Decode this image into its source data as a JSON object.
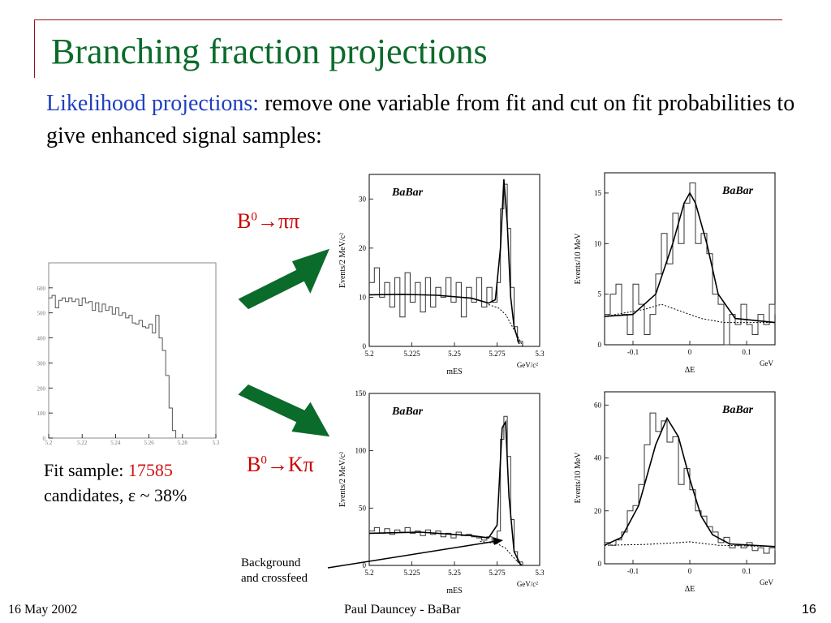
{
  "title": "Branching fraction projections",
  "subtitle": {
    "highlight": "Likelihood projections:",
    "text": " remove one variable from fit and cut on fit probabilities to give enhanced signal samples:"
  },
  "labels": {
    "decay_pipi_base": "B",
    "decay_pipi_sup": "0",
    "decay_pipi_rest": "→ππ",
    "decay_kpi_base": "B",
    "decay_kpi_sup": "0",
    "decay_kpi_rest": "→Kπ",
    "fit_prefix": "Fit sample: ",
    "fit_count": "17585",
    "fit_suffix": "candidates, ε ~ 38%",
    "bg_line1": "Background",
    "bg_line2": "and crossfeed"
  },
  "footer": {
    "date": "16 May 2002",
    "author": "Paul Dauncey - BaBar",
    "page": "16"
  },
  "colors": {
    "title": "#0a6b2a",
    "highlight": "#1f3fbf",
    "decay": "#cc0000",
    "count": "#d01010",
    "arrow": "#0a6b2a",
    "accent_line": "#8b1a1a"
  },
  "chart_data": [
    {
      "type": "line",
      "title": "",
      "xlabel": "mES",
      "ylabel": "",
      "xlim": [
        5.2,
        5.3
      ],
      "ylim": [
        0,
        700
      ],
      "x_ticks": [
        "5.2",
        "5.22",
        "5.24",
        "5.26",
        "5.28",
        "5.3"
      ],
      "y_ticks": [
        "0",
        "100",
        "200",
        "300",
        "400",
        "500",
        "600"
      ],
      "series": [
        {
          "values": [
            [
              5.2,
              560
            ],
            [
              5.202,
              570
            ],
            [
              5.204,
              520
            ],
            [
              5.206,
              550
            ],
            [
              5.208,
              560
            ],
            [
              5.21,
              545
            ],
            [
              5.212,
              560
            ],
            [
              5.214,
              545
            ],
            [
              5.216,
              555
            ],
            [
              5.218,
              530
            ],
            [
              5.22,
              560
            ],
            [
              5.222,
              540
            ],
            [
              5.224,
              545
            ],
            [
              5.226,
              510
            ],
            [
              5.228,
              540
            ],
            [
              5.23,
              505
            ],
            [
              5.232,
              535
            ],
            [
              5.234,
              510
            ],
            [
              5.236,
              525
            ],
            [
              5.238,
              495
            ],
            [
              5.24,
              520
            ],
            [
              5.242,
              490
            ],
            [
              5.244,
              500
            ],
            [
              5.246,
              480
            ],
            [
              5.248,
              490
            ],
            [
              5.25,
              460
            ],
            [
              5.252,
              455
            ],
            [
              5.254,
              470
            ],
            [
              5.256,
              445
            ],
            [
              5.258,
              440
            ],
            [
              5.26,
              455
            ],
            [
              5.262,
              420
            ],
            [
              5.264,
              490
            ],
            [
              5.266,
              400
            ],
            [
              5.268,
              350
            ],
            [
              5.27,
              250
            ],
            [
              5.272,
              120
            ],
            [
              5.274,
              30
            ],
            [
              5.276,
              0
            ]
          ]
        }
      ]
    },
    {
      "type": "line",
      "title": "BaBar",
      "xlabel": "mES",
      "xunit": "GeV/c²",
      "ylabel": "Events/2 MeV/c²",
      "xlim": [
        5.2,
        5.3
      ],
      "ylim": [
        0,
        35
      ],
      "x_ticks": [
        "5.2",
        "5.225",
        "5.25",
        "5.275",
        "5.3"
      ],
      "y_ticks": [
        "0",
        "10",
        "20",
        "30"
      ],
      "series": [
        {
          "values": [
            [
              5.2,
              13
            ],
            [
              5.203,
              16
            ],
            [
              5.206,
              10
            ],
            [
              5.209,
              13
            ],
            [
              5.212,
              8
            ],
            [
              5.215,
              14
            ],
            [
              5.218,
              6
            ],
            [
              5.221,
              15
            ],
            [
              5.224,
              9
            ],
            [
              5.227,
              13
            ],
            [
              5.23,
              7
            ],
            [
              5.233,
              14
            ],
            [
              5.236,
              8
            ],
            [
              5.239,
              12
            ],
            [
              5.242,
              10
            ],
            [
              5.245,
              14
            ],
            [
              5.248,
              9
            ],
            [
              5.251,
              13
            ],
            [
              5.254,
              6
            ],
            [
              5.257,
              12
            ],
            [
              5.26,
              9
            ],
            [
              5.263,
              14
            ],
            [
              5.266,
              8
            ],
            [
              5.269,
              12
            ],
            [
              5.272,
              9
            ],
            [
              5.275,
              13
            ],
            [
              5.277,
              28
            ],
            [
              5.279,
              33
            ],
            [
              5.281,
              24
            ],
            [
              5.283,
              12
            ],
            [
              5.285,
              4
            ],
            [
              5.287,
              1
            ],
            [
              5.29,
              0
            ]
          ]
        },
        {
          "values": [
            [
              5.2,
              10.5
            ],
            [
              5.22,
              10.6
            ],
            [
              5.24,
              10.4
            ],
            [
              5.26,
              9.8
            ],
            [
              5.27,
              8.8
            ],
            [
              5.274,
              9.5
            ],
            [
              5.277,
              20
            ],
            [
              5.279,
              34
            ],
            [
              5.281,
              25
            ],
            [
              5.283,
              10
            ],
            [
              5.285,
              4
            ],
            [
              5.288,
              0.5
            ]
          ]
        },
        {
          "values": [
            [
              5.27,
              8.5
            ],
            [
              5.276,
              7.8
            ],
            [
              5.28,
              6.5
            ],
            [
              5.284,
              4
            ],
            [
              5.288,
              1.5
            ],
            [
              5.29,
              0
            ]
          ]
        }
      ]
    },
    {
      "type": "line",
      "title": "BaBar",
      "xlabel": "ΔE",
      "xunit": "GeV",
      "ylabel": "Events/10 MeV",
      "xlim": [
        -0.15,
        0.15
      ],
      "ylim": [
        0,
        17
      ],
      "x_ticks": [
        "-0.1",
        "0",
        "0.1"
      ],
      "y_ticks": [
        "0",
        "5",
        "10",
        "15"
      ],
      "series": [
        {
          "values": [
            [
              -0.15,
              3
            ],
            [
              -0.14,
              5
            ],
            [
              -0.13,
              6
            ],
            [
              -0.12,
              3
            ],
            [
              -0.11,
              1
            ],
            [
              -0.1,
              6
            ],
            [
              -0.09,
              4
            ],
            [
              -0.08,
              1
            ],
            [
              -0.07,
              3
            ],
            [
              -0.06,
              7
            ],
            [
              -0.05,
              11
            ],
            [
              -0.04,
              8
            ],
            [
              -0.03,
              13
            ],
            [
              -0.02,
              10
            ],
            [
              -0.01,
              14
            ],
            [
              0,
              16
            ],
            [
              0.01,
              10
            ],
            [
              0.02,
              11
            ],
            [
              0.03,
              9
            ],
            [
              0.04,
              5
            ],
            [
              0.05,
              4
            ],
            [
              0.06,
              0
            ],
            [
              0.07,
              3
            ],
            [
              0.08,
              2
            ],
            [
              0.09,
              4
            ],
            [
              0.1,
              2
            ],
            [
              0.11,
              1
            ],
            [
              0.12,
              3
            ],
            [
              0.13,
              2
            ],
            [
              0.14,
              4
            ],
            [
              0.15,
              3
            ]
          ]
        },
        {
          "values": [
            [
              -0.15,
              2.8
            ],
            [
              -0.1,
              3
            ],
            [
              -0.06,
              5
            ],
            [
              -0.03,
              10
            ],
            [
              -0.01,
              14
            ],
            [
              0,
              15
            ],
            [
              0.01,
              14
            ],
            [
              0.03,
              10
            ],
            [
              0.05,
              5
            ],
            [
              0.08,
              2.6
            ],
            [
              0.15,
              2.2
            ]
          ]
        },
        {
          "values": [
            [
              -0.15,
              2.8
            ],
            [
              -0.08,
              3.5
            ],
            [
              -0.05,
              4
            ],
            [
              -0.02,
              3.4
            ],
            [
              0.02,
              2.6
            ],
            [
              0.06,
              2.2
            ],
            [
              0.15,
              2.2
            ]
          ]
        }
      ]
    },
    {
      "type": "line",
      "title": "BaBar",
      "xlabel": "mES",
      "xunit": "GeV/c²",
      "ylabel": "Events/2 MeV/c²",
      "xlim": [
        5.2,
        5.3
      ],
      "ylim": [
        0,
        150
      ],
      "x_ticks": [
        "5.2",
        "5.225",
        "5.25",
        "5.275",
        "5.3"
      ],
      "y_ticks": [
        "0",
        "50",
        "100",
        "150"
      ],
      "series": [
        {
          "values": [
            [
              5.2,
              30
            ],
            [
              5.203,
              33
            ],
            [
              5.206,
              28
            ],
            [
              5.209,
              32
            ],
            [
              5.212,
              27
            ],
            [
              5.215,
              31
            ],
            [
              5.218,
              29
            ],
            [
              5.221,
              33
            ],
            [
              5.224,
              28
            ],
            [
              5.227,
              30
            ],
            [
              5.23,
              26
            ],
            [
              5.233,
              31
            ],
            [
              5.236,
              27
            ],
            [
              5.239,
              30
            ],
            [
              5.242,
              25
            ],
            [
              5.245,
              28
            ],
            [
              5.248,
              24
            ],
            [
              5.251,
              29
            ],
            [
              5.254,
              26
            ],
            [
              5.257,
              27
            ],
            [
              5.26,
              25
            ],
            [
              5.263,
              24
            ],
            [
              5.266,
              22
            ],
            [
              5.269,
              25
            ],
            [
              5.272,
              21
            ],
            [
              5.275,
              30
            ],
            [
              5.277,
              110
            ],
            [
              5.279,
              130
            ],
            [
              5.281,
              95
            ],
            [
              5.283,
              40
            ],
            [
              5.285,
              12
            ],
            [
              5.287,
              3
            ],
            [
              5.29,
              0
            ]
          ]
        },
        {
          "values": [
            [
              5.2,
              28
            ],
            [
              5.23,
              29
            ],
            [
              5.26,
              26
            ],
            [
              5.27,
              24
            ],
            [
              5.275,
              35
            ],
            [
              5.278,
              120
            ],
            [
              5.28,
              125
            ],
            [
              5.282,
              60
            ],
            [
              5.285,
              12
            ],
            [
              5.289,
              0
            ]
          ]
        },
        {
          "values": [
            [
              5.265,
              21
            ],
            [
              5.275,
              19
            ],
            [
              5.28,
              15
            ],
            [
              5.284,
              8
            ],
            [
              5.288,
              2
            ],
            [
              5.29,
              0
            ]
          ]
        }
      ]
    },
    {
      "type": "line",
      "title": "BaBar",
      "xlabel": "ΔE",
      "xunit": "GeV",
      "ylabel": "Events/10 MeV",
      "xlim": [
        -0.15,
        0.15
      ],
      "ylim": [
        0,
        65
      ],
      "x_ticks": [
        "-0.1",
        "0",
        "0.1"
      ],
      "y_ticks": [
        "0",
        "20",
        "40",
        "60"
      ],
      "series": [
        {
          "values": [
            [
              -0.15,
              8
            ],
            [
              -0.14,
              7
            ],
            [
              -0.13,
              9
            ],
            [
              -0.12,
              12
            ],
            [
              -0.11,
              20
            ],
            [
              -0.1,
              22
            ],
            [
              -0.09,
              30
            ],
            [
              -0.08,
              45
            ],
            [
              -0.07,
              57
            ],
            [
              -0.06,
              50
            ],
            [
              -0.05,
              54
            ],
            [
              -0.04,
              46
            ],
            [
              -0.03,
              48
            ],
            [
              -0.02,
              30
            ],
            [
              -0.01,
              36
            ],
            [
              0,
              28
            ],
            [
              0.01,
              20
            ],
            [
              0.02,
              18
            ],
            [
              0.03,
              14
            ],
            [
              0.04,
              12
            ],
            [
              0.05,
              8
            ],
            [
              0.06,
              10
            ],
            [
              0.07,
              6
            ],
            [
              0.08,
              7
            ],
            [
              0.09,
              6
            ],
            [
              0.1,
              8
            ],
            [
              0.11,
              5
            ],
            [
              0.12,
              6
            ],
            [
              0.13,
              4
            ],
            [
              0.14,
              6
            ],
            [
              0.15,
              5
            ]
          ]
        },
        {
          "values": [
            [
              -0.15,
              7
            ],
            [
              -0.12,
              10
            ],
            [
              -0.09,
              22
            ],
            [
              -0.06,
              45
            ],
            [
              -0.04,
              55
            ],
            [
              -0.02,
              48
            ],
            [
              0,
              32
            ],
            [
              0.02,
              18
            ],
            [
              0.04,
              11
            ],
            [
              0.07,
              7.5
            ],
            [
              0.15,
              6.5
            ]
          ]
        },
        {
          "values": [
            [
              -0.15,
              7
            ],
            [
              -0.08,
              7.3
            ],
            [
              -0.02,
              8
            ],
            [
              0,
              8.3
            ],
            [
              0.05,
              7
            ],
            [
              0.15,
              6.5
            ]
          ]
        }
      ]
    }
  ]
}
